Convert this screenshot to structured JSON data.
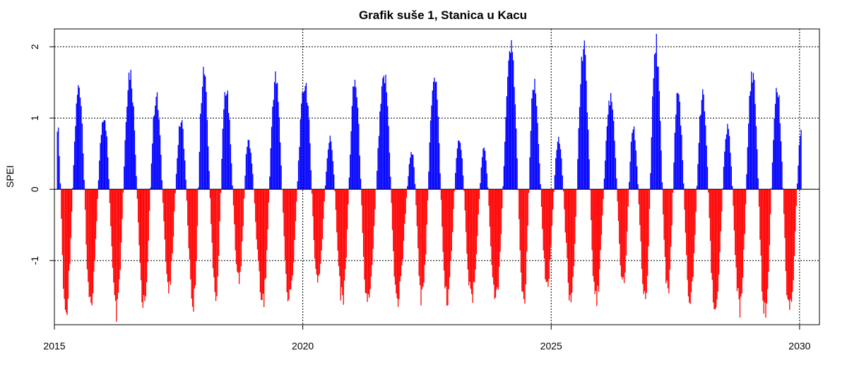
{
  "chart_data": {
    "type": "area",
    "title": "Grafik suše 1, Stanica u Kacu",
    "xlabel": "",
    "ylabel": "SPEI",
    "xlim": [
      2015.0,
      2030.4
    ],
    "ylim": [
      -1.9,
      2.25
    ],
    "x_ticks": [
      2015,
      2020,
      2025,
      2030
    ],
    "x_tick_labels": [
      "2015",
      "2020",
      "2025",
      "2030"
    ],
    "y_ticks": [
      -1,
      0,
      1,
      2
    ],
    "y_tick_labels": [
      "-1",
      "0",
      "1",
      "2"
    ],
    "grid": true,
    "positive_color": "#0000ff",
    "negative_color": "#ff0000",
    "peaks": [
      [
        2015.06,
        0.9
      ],
      [
        2015.22,
        -1.75
      ],
      [
        2015.5,
        1.45
      ],
      [
        2015.72,
        -1.6
      ],
      [
        2016.0,
        1.05
      ],
      [
        2016.25,
        -1.75
      ],
      [
        2016.52,
        1.65
      ],
      [
        2016.8,
        -1.6
      ],
      [
        2017.05,
        1.3
      ],
      [
        2017.3,
        -1.35
      ],
      [
        2017.55,
        0.95
      ],
      [
        2017.8,
        -1.6
      ],
      [
        2018.0,
        1.65
      ],
      [
        2018.25,
        -1.5
      ],
      [
        2018.45,
        1.4
      ],
      [
        2018.72,
        -1.3
      ],
      [
        2018.9,
        0.7
      ],
      [
        2019.2,
        -1.55
      ],
      [
        2019.45,
        1.55
      ],
      [
        2019.72,
        -1.55
      ],
      [
        2020.05,
        1.5
      ],
      [
        2020.3,
        -1.3
      ],
      [
        2020.55,
        0.7
      ],
      [
        2020.8,
        -1.55
      ],
      [
        2021.05,
        1.5
      ],
      [
        2021.3,
        -1.55
      ],
      [
        2021.65,
        1.55
      ],
      [
        2021.9,
        -1.55
      ],
      [
        2022.2,
        0.5
      ],
      [
        2022.4,
        -1.55
      ],
      [
        2022.65,
        1.65
      ],
      [
        2022.9,
        -1.55
      ],
      [
        2023.15,
        0.7
      ],
      [
        2023.4,
        -1.55
      ],
      [
        2023.65,
        0.55
      ],
      [
        2023.88,
        -1.55
      ],
      [
        2024.2,
        1.95
      ],
      [
        2024.45,
        -1.55
      ],
      [
        2024.65,
        1.45
      ],
      [
        2024.92,
        -1.3
      ],
      [
        2025.15,
        0.7
      ],
      [
        2025.4,
        -1.55
      ],
      [
        2025.65,
        1.95
      ],
      [
        2025.9,
        -1.55
      ],
      [
        2026.2,
        1.3
      ],
      [
        2026.45,
        -1.3
      ],
      [
        2026.65,
        0.85
      ],
      [
        2026.9,
        -1.55
      ],
      [
        2027.1,
        2.05
      ],
      [
        2027.35,
        -1.45
      ],
      [
        2027.55,
        1.35
      ],
      [
        2027.8,
        -1.55
      ],
      [
        2028.05,
        1.3
      ],
      [
        2028.3,
        -1.75
      ],
      [
        2028.55,
        0.85
      ],
      [
        2028.8,
        -1.65
      ],
      [
        2029.05,
        1.65
      ],
      [
        2029.3,
        -1.75
      ],
      [
        2029.55,
        1.4
      ],
      [
        2029.8,
        -1.75
      ],
      [
        2030.05,
        0.95
      ]
    ],
    "series": [
      {
        "name": "SPEI",
        "x": [],
        "values": []
      }
    ]
  }
}
